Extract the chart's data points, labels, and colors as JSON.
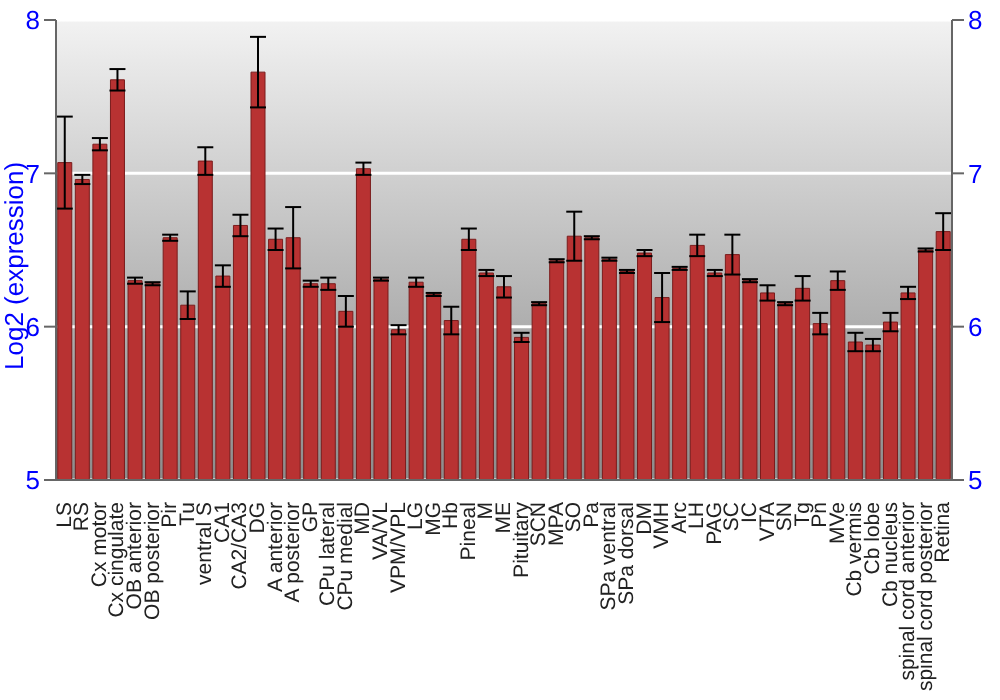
{
  "chart_data": {
    "type": "bar",
    "ylabel": "Log2 (expression)",
    "categories": [
      "LS",
      "RS",
      "Cx motor",
      "Cx cingulate",
      "OB anterior",
      "OB posterior",
      "Pir",
      "Tu",
      "ventral S",
      "CA1",
      "CA2/CA3",
      "DG",
      "A anterior",
      "A posterior",
      "GP",
      "CPu lateral",
      "CPu medial",
      "MD",
      "VA/VL",
      "VPM/VPL",
      "LG",
      "MG",
      "Hb",
      "Pineal",
      "M",
      "ME",
      "Pituitary",
      "SCN",
      "MPA",
      "SO",
      "Pa",
      "SPa ventral",
      "SPa dorsal",
      "DM",
      "VMH",
      "Arc",
      "LH",
      "PAG",
      "SC",
      "IC",
      "VTA",
      "SN",
      "Tg",
      "Pn",
      "MVe",
      "Cb vermis",
      "Cb lobe",
      "Cb nucleus",
      "spinal cord anterior",
      "spinal cord posterior",
      "Retina"
    ],
    "values": [
      7.07,
      6.96,
      7.19,
      7.61,
      6.3,
      6.28,
      6.58,
      6.14,
      7.08,
      6.33,
      6.66,
      7.66,
      6.57,
      6.58,
      6.28,
      6.28,
      6.1,
      7.03,
      6.31,
      5.98,
      6.29,
      6.21,
      6.04,
      6.57,
      6.35,
      6.26,
      5.93,
      6.15,
      6.43,
      6.59,
      6.58,
      6.44,
      6.36,
      6.48,
      6.19,
      6.38,
      6.53,
      6.35,
      6.47,
      6.3,
      6.22,
      6.15,
      6.25,
      6.02,
      6.3,
      5.9,
      5.88,
      6.03,
      6.22,
      6.5,
      6.62
    ],
    "errors": [
      0.3,
      0.03,
      0.04,
      0.07,
      0.02,
      0.01,
      0.02,
      0.09,
      0.09,
      0.07,
      0.07,
      0.23,
      0.07,
      0.2,
      0.02,
      0.04,
      0.1,
      0.04,
      0.01,
      0.03,
      0.03,
      0.01,
      0.09,
      0.07,
      0.02,
      0.07,
      0.03,
      0.01,
      0.01,
      0.16,
      0.01,
      0.01,
      0.01,
      0.02,
      0.16,
      0.01,
      0.07,
      0.02,
      0.13,
      0.01,
      0.05,
      0.01,
      0.08,
      0.07,
      0.06,
      0.06,
      0.04,
      0.06,
      0.04,
      0.01,
      0.12
    ],
    "color": "#b83232",
    "ylim": [
      5,
      8
    ],
    "yticks": [
      5,
      6,
      7,
      8
    ],
    "y2lim": [
      5,
      8
    ],
    "y2ticks": [
      5,
      6,
      7,
      8
    ],
    "grid": "y",
    "legend": false
  }
}
